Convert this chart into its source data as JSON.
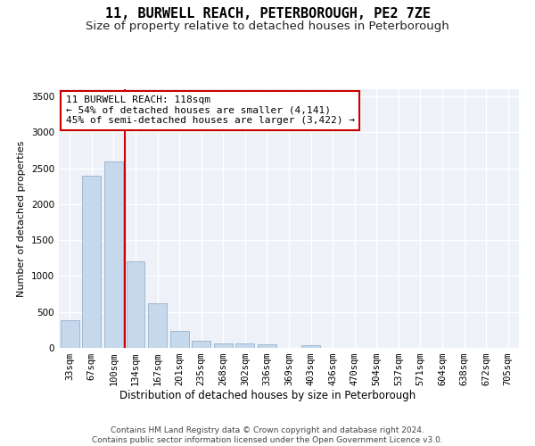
{
  "title": "11, BURWELL REACH, PETERBOROUGH, PE2 7ZE",
  "subtitle": "Size of property relative to detached houses in Peterborough",
  "xlabel": "Distribution of detached houses by size in Peterborough",
  "ylabel": "Number of detached properties",
  "categories": [
    "33sqm",
    "67sqm",
    "100sqm",
    "134sqm",
    "167sqm",
    "201sqm",
    "235sqm",
    "268sqm",
    "302sqm",
    "336sqm",
    "369sqm",
    "403sqm",
    "436sqm",
    "470sqm",
    "504sqm",
    "537sqm",
    "571sqm",
    "604sqm",
    "638sqm",
    "672sqm",
    "705sqm"
  ],
  "values": [
    380,
    2400,
    2600,
    1200,
    620,
    240,
    105,
    60,
    60,
    55,
    5,
    40,
    0,
    0,
    0,
    0,
    0,
    0,
    0,
    0,
    0
  ],
  "bar_color": "#c5d8ec",
  "bar_edge_color": "#a0b8d0",
  "vline_x_index": 2.5,
  "vline_color": "#cc0000",
  "annotation_text": "11 BURWELL REACH: 118sqm\n← 54% of detached houses are smaller (4,141)\n45% of semi-detached houses are larger (3,422) →",
  "annotation_box_color": "#ffffff",
  "annotation_box_edge_color": "#cc0000",
  "ylim": [
    0,
    3600
  ],
  "yticks": [
    0,
    500,
    1000,
    1500,
    2000,
    2500,
    3000,
    3500
  ],
  "bg_color": "#eef2f8",
  "footer": "Contains HM Land Registry data © Crown copyright and database right 2024.\nContains public sector information licensed under the Open Government Licence v3.0.",
  "title_fontsize": 11,
  "subtitle_fontsize": 9.5,
  "annot_fontsize": 8,
  "footer_fontsize": 6.5,
  "ylabel_fontsize": 8,
  "xlabel_fontsize": 8.5,
  "tick_fontsize": 7.5
}
